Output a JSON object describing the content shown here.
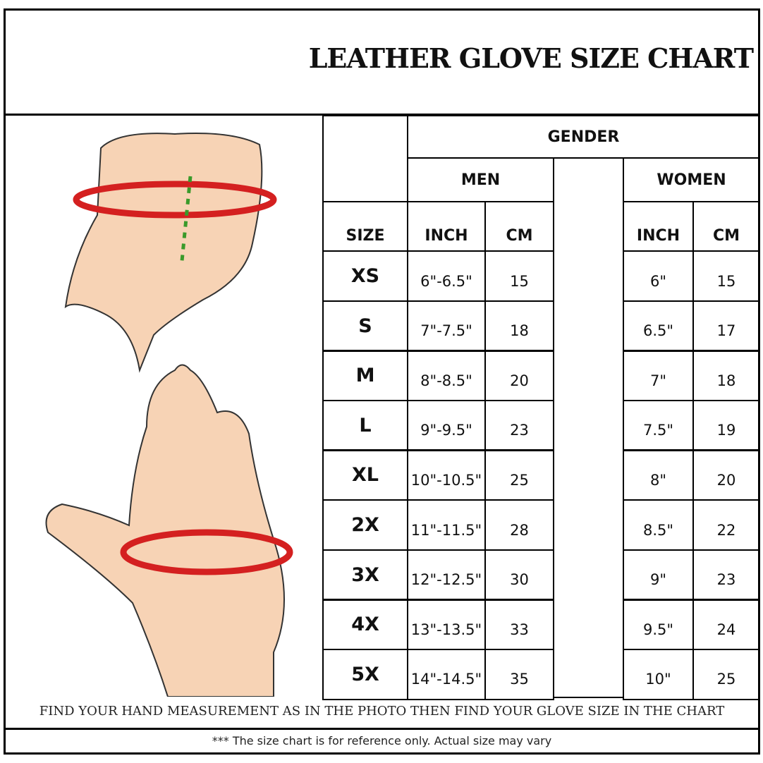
{
  "title": "LEATHER GLOVE SIZE CHART",
  "table": {
    "gender": "GENDER",
    "men": "MEN",
    "women": "WOMEN",
    "size": "SIZE",
    "men_inch": "INCH",
    "men_cm": "CM",
    "women_inch": "INCH",
    "women_cm": "CM",
    "rows": [
      {
        "size": "XS",
        "men_inch": "6\"-6.5\"",
        "men_cm": "15",
        "women_inch": "6\"",
        "women_cm": "15"
      },
      {
        "size": "S",
        "men_inch": "7\"-7.5\"",
        "men_cm": "18",
        "women_inch": "6.5\"",
        "women_cm": "17"
      },
      {
        "size": "M",
        "men_inch": "8\"-8.5\"",
        "men_cm": "20",
        "women_inch": "7\"",
        "women_cm": "18"
      },
      {
        "size": "L",
        "men_inch": "9\"-9.5\"",
        "men_cm": "23",
        "women_inch": "7.5\"",
        "women_cm": "19"
      },
      {
        "size": "XL",
        "men_inch": "10\"-10.5\"",
        "men_cm": "25",
        "women_inch": "8\"",
        "women_cm": "20"
      },
      {
        "size": "2X",
        "men_inch": "11\"-11.5\"",
        "men_cm": "28",
        "women_inch": "8.5\"",
        "women_cm": "22"
      },
      {
        "size": "3X",
        "men_inch": "12\"-12.5\"",
        "men_cm": "30",
        "women_inch": "9\"",
        "women_cm": "23"
      },
      {
        "size": "4X",
        "men_inch": "13\"-13.5\"",
        "men_cm": "33",
        "women_inch": "9.5\"",
        "women_cm": "24"
      },
      {
        "size": "5X",
        "men_inch": "14\"-14.5\"",
        "men_cm": "35",
        "women_inch": "10\"",
        "women_cm": "25"
      }
    ]
  },
  "instruction": "FIND YOUR HAND MEASUREMENT AS IN THE PHOTO THEN FIND YOUR GLOVE SIZE IN THE CHART",
  "disclaimer": "*** The size chart is for reference only.  Actual size may vary",
  "colors": {
    "skin": "#f7d3b5",
    "arrow": "#d42020",
    "guide": "#3a9a2a"
  }
}
